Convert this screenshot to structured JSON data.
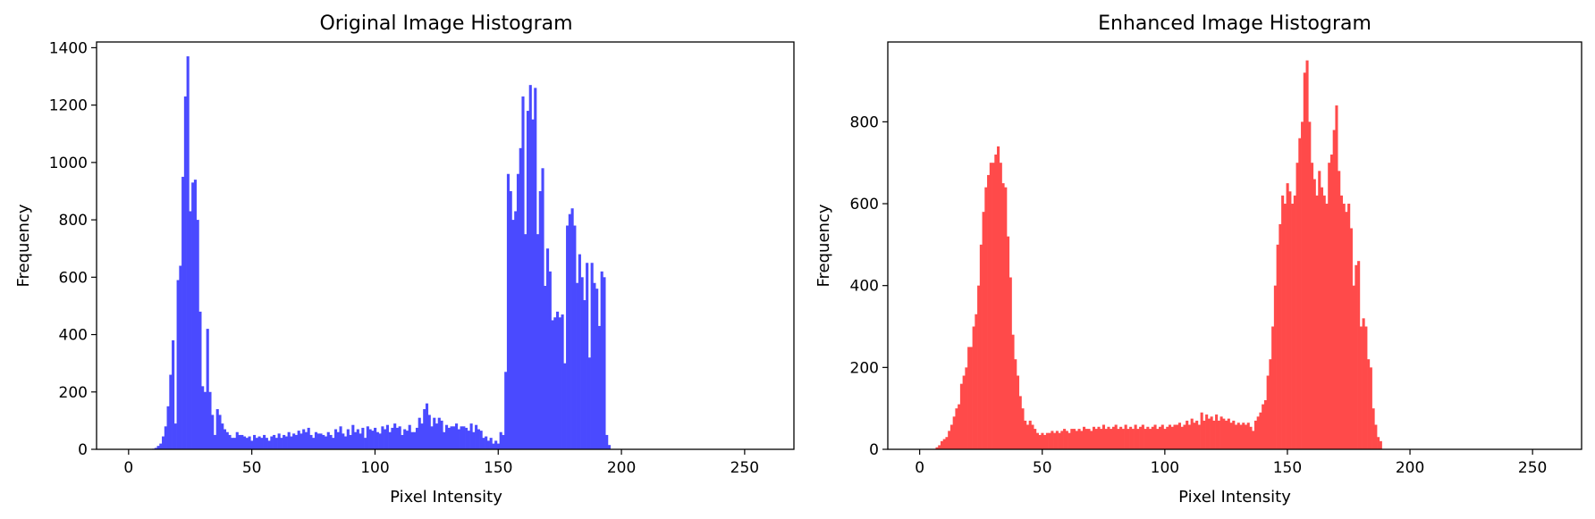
{
  "chart_data": [
    {
      "type": "bar",
      "title": "Original Image Histogram",
      "xlabel": "Pixel Intensity",
      "ylabel": "Frequency",
      "xlim": [
        -13,
        270
      ],
      "ylim": [
        0,
        1420
      ],
      "xticks": [
        0,
        50,
        100,
        150,
        200,
        250
      ],
      "yticks": [
        0,
        200,
        400,
        600,
        800,
        1000,
        1200,
        1400
      ],
      "color": "#4a4aff",
      "grid": false,
      "x_start": 10,
      "values": [
        2,
        5,
        12,
        20,
        45,
        80,
        150,
        260,
        380,
        90,
        590,
        640,
        950,
        1230,
        1370,
        830,
        930,
        940,
        800,
        480,
        220,
        200,
        420,
        200,
        120,
        50,
        140,
        120,
        90,
        70,
        60,
        50,
        40,
        40,
        60,
        50,
        50,
        45,
        40,
        45,
        30,
        50,
        40,
        45,
        40,
        50,
        40,
        30,
        45,
        50,
        40,
        55,
        40,
        50,
        45,
        60,
        45,
        55,
        50,
        65,
        55,
        70,
        60,
        75,
        50,
        40,
        60,
        55,
        55,
        50,
        45,
        60,
        50,
        40,
        70,
        60,
        80,
        55,
        45,
        70,
        50,
        85,
        60,
        70,
        55,
        75,
        40,
        80,
        70,
        65,
        75,
        60,
        55,
        80,
        70,
        85,
        60,
        75,
        90,
        75,
        80,
        50,
        70,
        65,
        85,
        60,
        60,
        75,
        110,
        90,
        140,
        160,
        120,
        80,
        110,
        90,
        110,
        100,
        60,
        85,
        75,
        80,
        80,
        90,
        70,
        80,
        80,
        75,
        65,
        90,
        60,
        85,
        70,
        65,
        40,
        45,
        30,
        40,
        20,
        30,
        20,
        60,
        50,
        270,
        960,
        900,
        800,
        830,
        960,
        1050,
        1230,
        750,
        1180,
        1270,
        1150,
        1260,
        750,
        900,
        980,
        570,
        700,
        620,
        450,
        460,
        480,
        460,
        470,
        300,
        780,
        820,
        840,
        780,
        580,
        680,
        600,
        520,
        650,
        320,
        650,
        580,
        560,
        430,
        620,
        600,
        50,
        15
      ],
      "values_note": ""
    },
    {
      "type": "bar",
      "title": "Enhanced Image Histogram",
      "xlabel": "Pixel Intensity",
      "ylabel": "Frequency",
      "xlim": [
        -13,
        270
      ],
      "ylim": [
        0,
        995
      ],
      "xticks": [
        0,
        50,
        100,
        150,
        200,
        250
      ],
      "yticks": [
        0,
        200,
        400,
        600,
        800
      ],
      "color": "#ff4a4a",
      "grid": false,
      "x_start": 7,
      "values": [
        5,
        10,
        20,
        25,
        30,
        45,
        60,
        80,
        100,
        110,
        160,
        180,
        200,
        250,
        250,
        300,
        330,
        400,
        500,
        580,
        640,
        670,
        700,
        700,
        720,
        740,
        700,
        650,
        640,
        520,
        420,
        280,
        220,
        180,
        130,
        100,
        70,
        60,
        70,
        60,
        50,
        40,
        35,
        40,
        35,
        40,
        40,
        45,
        40,
        45,
        40,
        45,
        50,
        45,
        40,
        50,
        50,
        45,
        50,
        45,
        55,
        50,
        50,
        45,
        55,
        50,
        55,
        50,
        60,
        50,
        55,
        50,
        55,
        60,
        50,
        55,
        50,
        60,
        50,
        55,
        50,
        60,
        50,
        55,
        60,
        50,
        55,
        50,
        55,
        60,
        50,
        55,
        60,
        50,
        55,
        60,
        55,
        60,
        60,
        65,
        55,
        60,
        70,
        60,
        75,
        65,
        70,
        60,
        90,
        70,
        85,
        75,
        80,
        70,
        85,
        70,
        80,
        75,
        70,
        75,
        65,
        70,
        60,
        65,
        60,
        65,
        60,
        65,
        55,
        45,
        70,
        80,
        90,
        110,
        120,
        180,
        220,
        300,
        400,
        500,
        550,
        620,
        600,
        650,
        630,
        600,
        620,
        700,
        760,
        800,
        920,
        950,
        800,
        700,
        660,
        620,
        680,
        640,
        620,
        600,
        700,
        720,
        780,
        840,
        680,
        620,
        600,
        580,
        600,
        540,
        400,
        450,
        460,
        300,
        320,
        300,
        220,
        200,
        100,
        60,
        30,
        20
      ]
    }
  ]
}
